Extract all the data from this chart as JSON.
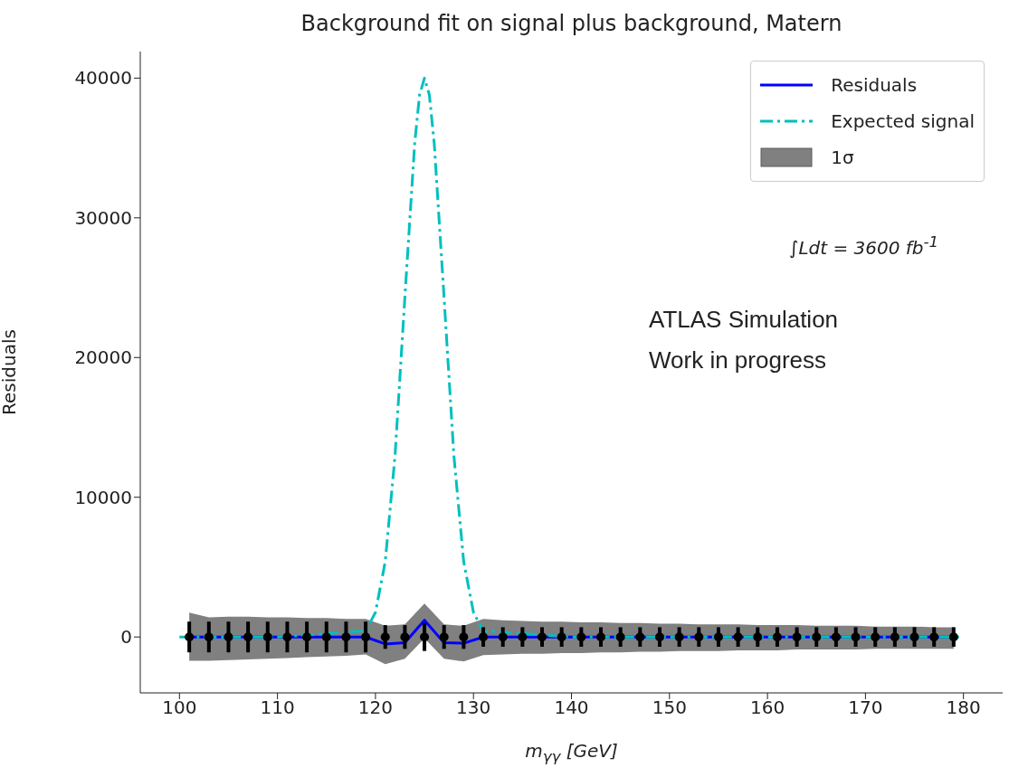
{
  "chart_data": {
    "type": "line",
    "title": "Background fit on signal plus background, Matern",
    "xlabel": "m$_{γγ}$ [GeV]",
    "ylabel": "Residuals",
    "annotations": [
      "∫Ldt = 3600 fb$^{-1}$",
      "ATLAS Simulation",
      "Work in progress"
    ],
    "xlim": [
      96,
      184
    ],
    "ylim": [
      -4000,
      41900
    ],
    "xticks": [
      100,
      110,
      120,
      130,
      140,
      150,
      160,
      170,
      180
    ],
    "yticks": [
      0,
      10000,
      20000,
      30000,
      40000
    ],
    "legend": "top right",
    "series": [
      {
        "name": "Residuals",
        "color": "#0000ff",
        "line_style": "solid",
        "marker": "none",
        "x": [
          101,
          103,
          105,
          107,
          109,
          111,
          113,
          115,
          117,
          119,
          121,
          123,
          125,
          127,
          129,
          131,
          133,
          135,
          137,
          139,
          141,
          143,
          145,
          147,
          149,
          151,
          153,
          155,
          157,
          159,
          161,
          163,
          165,
          167,
          169,
          171,
          173,
          175,
          177,
          179
        ],
        "values": [
          0,
          0,
          0,
          0,
          0,
          0,
          0,
          0,
          0,
          0,
          -500,
          -400,
          1200,
          -400,
          -450,
          0,
          0,
          0,
          0,
          0,
          0,
          0,
          0,
          0,
          0,
          0,
          0,
          0,
          0,
          0,
          0,
          0,
          0,
          0,
          0,
          0,
          0,
          0,
          0,
          0
        ]
      },
      {
        "name": "Expected signal",
        "color": "#00bfbf",
        "line_style": "dashed",
        "marker": "none",
        "x": [
          100,
          110,
          119,
          120,
          121,
          122,
          123,
          124,
          124.5,
          125,
          125.5,
          126,
          127,
          128,
          129,
          130,
          131,
          140,
          150,
          160,
          170,
          180
        ],
        "values": [
          0,
          0,
          440,
          1760,
          5400,
          13000,
          24300,
          35300,
          38800,
          40000,
          38800,
          35300,
          24300,
          13000,
          5400,
          1760,
          440,
          0,
          0,
          0,
          0,
          0
        ]
      },
      {
        "type": "area",
        "name": "1σ",
        "color": "#808080",
        "x": [
          101,
          103,
          105,
          107,
          109,
          111,
          113,
          115,
          117,
          119,
          121,
          123,
          125,
          127,
          129,
          131,
          133,
          135,
          137,
          139,
          141,
          143,
          145,
          147,
          149,
          151,
          153,
          155,
          157,
          159,
          161,
          163,
          165,
          167,
          169,
          171,
          173,
          175,
          177,
          179
        ],
        "values": [
          null,
          null,
          null,
          null,
          null,
          null,
          null,
          null,
          null,
          null,
          null,
          null,
          null,
          null,
          null,
          null,
          null,
          null,
          null,
          null,
          null,
          null,
          null,
          null,
          null,
          null,
          null,
          null,
          null,
          null,
          null,
          null,
          null,
          null,
          null,
          null,
          null,
          null,
          null,
          null
        ],
        "lower": [
          -1700,
          -1700,
          -1650,
          -1600,
          -1550,
          -1500,
          -1450,
          -1400,
          -1350,
          -1250,
          -1950,
          -1550,
          -100,
          -1550,
          -1750,
          -1300,
          -1250,
          -1200,
          -1200,
          -1150,
          -1150,
          -1100,
          -1100,
          -1050,
          -1050,
          -1000,
          -1000,
          -1000,
          -950,
          -950,
          -950,
          -900,
          -900,
          -900,
          -900,
          -850,
          -850,
          -850,
          -850,
          -850
        ],
        "upper": [
          1750,
          1400,
          1450,
          1450,
          1400,
          1400,
          1350,
          1350,
          1300,
          1300,
          800,
          900,
          2400,
          900,
          800,
          1300,
          1200,
          1150,
          1100,
          1100,
          1050,
          1050,
          1000,
          1000,
          950,
          950,
          900,
          900,
          900,
          850,
          850,
          850,
          800,
          800,
          800,
          750,
          750,
          750,
          700,
          700
        ]
      },
      {
        "type": "scatter",
        "color": "#000000",
        "marker": "circle",
        "x": [
          101,
          103,
          105,
          107,
          109,
          111,
          113,
          115,
          117,
          119,
          121,
          123,
          125,
          127,
          129,
          131,
          133,
          135,
          137,
          139,
          141,
          143,
          145,
          147,
          149,
          151,
          153,
          155,
          157,
          159,
          161,
          163,
          165,
          167,
          169,
          171,
          173,
          175,
          177,
          179
        ],
        "values": [
          0,
          0,
          0,
          0,
          0,
          0,
          0,
          0,
          0,
          0,
          0,
          0,
          0,
          0,
          0,
          0,
          0,
          0,
          0,
          0,
          0,
          0,
          0,
          0,
          0,
          0,
          0,
          0,
          0,
          0,
          0,
          0,
          0,
          0,
          0,
          0,
          0,
          0,
          0,
          0
        ],
        "errors": [
          1100,
          1100,
          1100,
          1100,
          1100,
          1100,
          1100,
          1100,
          1100,
          1100,
          850,
          850,
          1000,
          850,
          850,
          700,
          700,
          700,
          700,
          700,
          700,
          700,
          700,
          700,
          700,
          700,
          700,
          700,
          700,
          700,
          700,
          700,
          700,
          700,
          700,
          700,
          700,
          700,
          700,
          700
        ]
      }
    ]
  }
}
